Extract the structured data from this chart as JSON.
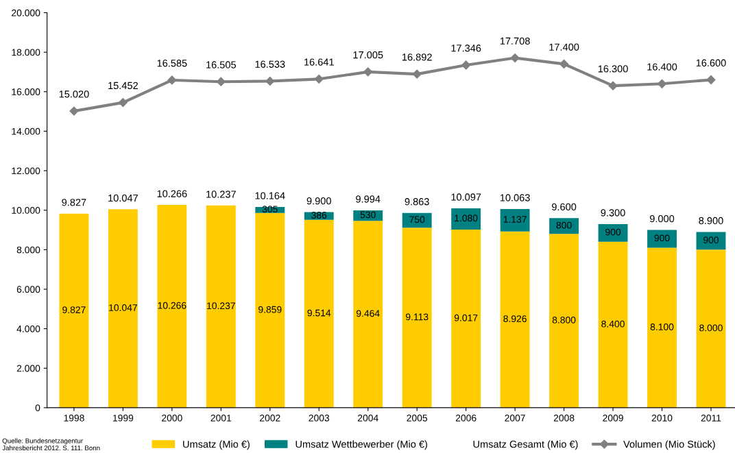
{
  "chart_data": {
    "type": "bar",
    "stacked": true,
    "data_labels": true,
    "grid": false,
    "legend": "bottom",
    "categories": [
      "1998",
      "1999",
      "2000",
      "2001",
      "2002",
      "2003",
      "2004",
      "2005",
      "2006",
      "2007",
      "2008",
      "2009",
      "2010",
      "2011"
    ],
    "ylim": [
      0,
      20000
    ],
    "yticks": [
      {
        "value": 0,
        "label": "0"
      },
      {
        "value": 2000,
        "label": "2.000"
      },
      {
        "value": 4000,
        "label": "4.000"
      },
      {
        "value": 6000,
        "label": "6.000"
      },
      {
        "value": 8000,
        "label": "8.000"
      },
      {
        "value": 10000,
        "label": "10.000"
      },
      {
        "value": 12000,
        "label": "12.000"
      },
      {
        "value": 14000,
        "label": "14.000"
      },
      {
        "value": 16000,
        "label": "16.000"
      },
      {
        "value": 18000,
        "label": "18.000"
      },
      {
        "value": 20000,
        "label": "20.000"
      }
    ],
    "series": [
      {
        "name": "Umsatz (Mio €)",
        "color": "#ffcc00",
        "values": [
          9827,
          10047,
          10266,
          10237,
          9859,
          9514,
          9464,
          9113,
          9017,
          8926,
          8800,
          8400,
          8100,
          8000
        ],
        "value_labels": [
          "9.827",
          "10.047",
          "10.266",
          "10.237",
          "9.859",
          "9.514",
          "9.464",
          "9.113",
          "9.017",
          "8.926",
          "8.800",
          "8.400",
          "8.100",
          "8.000"
        ]
      },
      {
        "name": "Umsatz Wettbewerber (Mio €)",
        "color": "#008080",
        "values": [
          null,
          null,
          null,
          null,
          305,
          386,
          530,
          750,
          1080,
          1137,
          800,
          900,
          900,
          900
        ],
        "value_labels": [
          null,
          null,
          null,
          null,
          "305",
          "386",
          "530",
          "750",
          "1.080",
          "1.137",
          "800",
          "900",
          "900",
          "900"
        ]
      },
      {
        "name": "Volumen (Mio Stück)",
        "type": "line",
        "color": "#808080",
        "marker": "diamond",
        "line_style": "solid",
        "values": [
          15020,
          15452,
          16585,
          16505,
          16533,
          16641,
          17005,
          16892,
          17346,
          17708,
          17400,
          16300,
          16400,
          16600
        ],
        "value_labels": [
          "15.020",
          "15.452",
          "16.585",
          "16.505",
          "16.533",
          "16.641",
          "17.005",
          "16.892",
          "17.346",
          "17.708",
          "17.400",
          "16.300",
          "16.400",
          "16.600"
        ]
      }
    ],
    "totals": [
      "9.827",
      "10.047",
      "10.266",
      "10.237",
      "10.164",
      "9.900",
      "9.994",
      "9.863",
      "10.097",
      "10.063",
      "9.600",
      "9.300",
      "9.000",
      "8.900"
    ],
    "annotations": [
      "Umsatz Gesamt (Mio €)",
      "Quelle: Bundesnetzagentur Jahresbericht 2012. S. 111. Bonn"
    ]
  }
}
